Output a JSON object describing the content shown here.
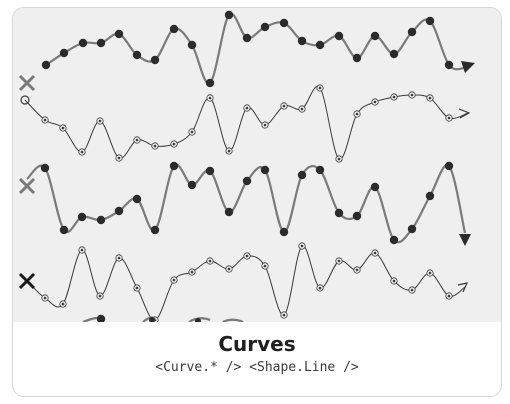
{
  "card": {
    "title": "Curves",
    "subtitle": "<Curve.* /> <Shape.Line />"
  },
  "preview": {
    "background": "#efefef",
    "curve_colors": {
      "thick": "#7a7a7a",
      "thin": "#3a3a3a",
      "point": "#2b2b2b"
    },
    "icons": [
      "cross-icon",
      "open-circle-icon",
      "cross-icon",
      "x-mark-icon",
      "arrow-head-icon"
    ]
  }
}
